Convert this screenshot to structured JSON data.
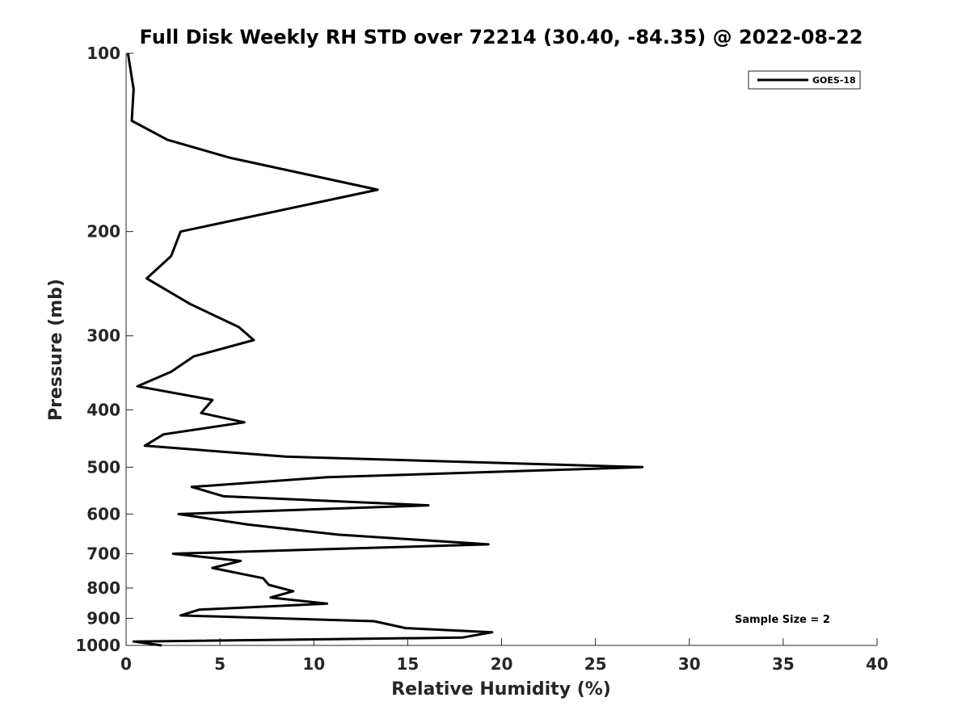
{
  "chart_data": {
    "type": "line",
    "title": "Full Disk Weekly RH STD over 72214 (30.40, -84.35) @ 2022-08-22",
    "xlabel": "Relative Humidity (%)",
    "ylabel": "Pressure (mb)",
    "xlim": [
      0,
      40
    ],
    "ylim": [
      100,
      1000
    ],
    "y_scale": "log",
    "y_reversed": true,
    "x_ticks": [
      "0",
      "5",
      "10",
      "15",
      "20",
      "25",
      "30",
      "35",
      "40"
    ],
    "y_ticks": [
      "100",
      "200",
      "300",
      "400",
      "500",
      "600",
      "700",
      "800",
      "900",
      "1000"
    ],
    "grid": false,
    "legend_position": "top-right",
    "annotation": "Sample Size = 2",
    "series": [
      {
        "name": "GOES-18",
        "color": "#000000",
        "x": [
          0.1,
          0.4,
          0.3,
          2.2,
          5.5,
          13.4,
          2.9,
          2.4,
          1.1,
          3.4,
          6.0,
          6.8,
          3.6,
          2.4,
          0.6,
          4.6,
          4.0,
          6.3,
          2.0,
          1.0,
          8.5,
          27.5,
          10.7,
          3.5,
          5.2,
          16.1,
          2.8,
          6.5,
          11.3,
          19.3,
          2.5,
          6.1,
          4.6,
          7.3,
          7.6,
          8.9,
          7.7,
          10.7,
          3.9,
          2.9,
          13.2,
          14.9,
          19.5,
          17.9,
          0.4,
          1.9
        ],
        "y": [
          100,
          115,
          130,
          140,
          150,
          170,
          200,
          220,
          240,
          265,
          290,
          305,
          325,
          345,
          365,
          385,
          405,
          420,
          440,
          460,
          480,
          500,
          520,
          540,
          560,
          580,
          600,
          625,
          650,
          675,
          700,
          720,
          740,
          770,
          790,
          810,
          830,
          850,
          870,
          890,
          910,
          935,
          950,
          970,
          985,
          1000
        ]
      }
    ]
  }
}
